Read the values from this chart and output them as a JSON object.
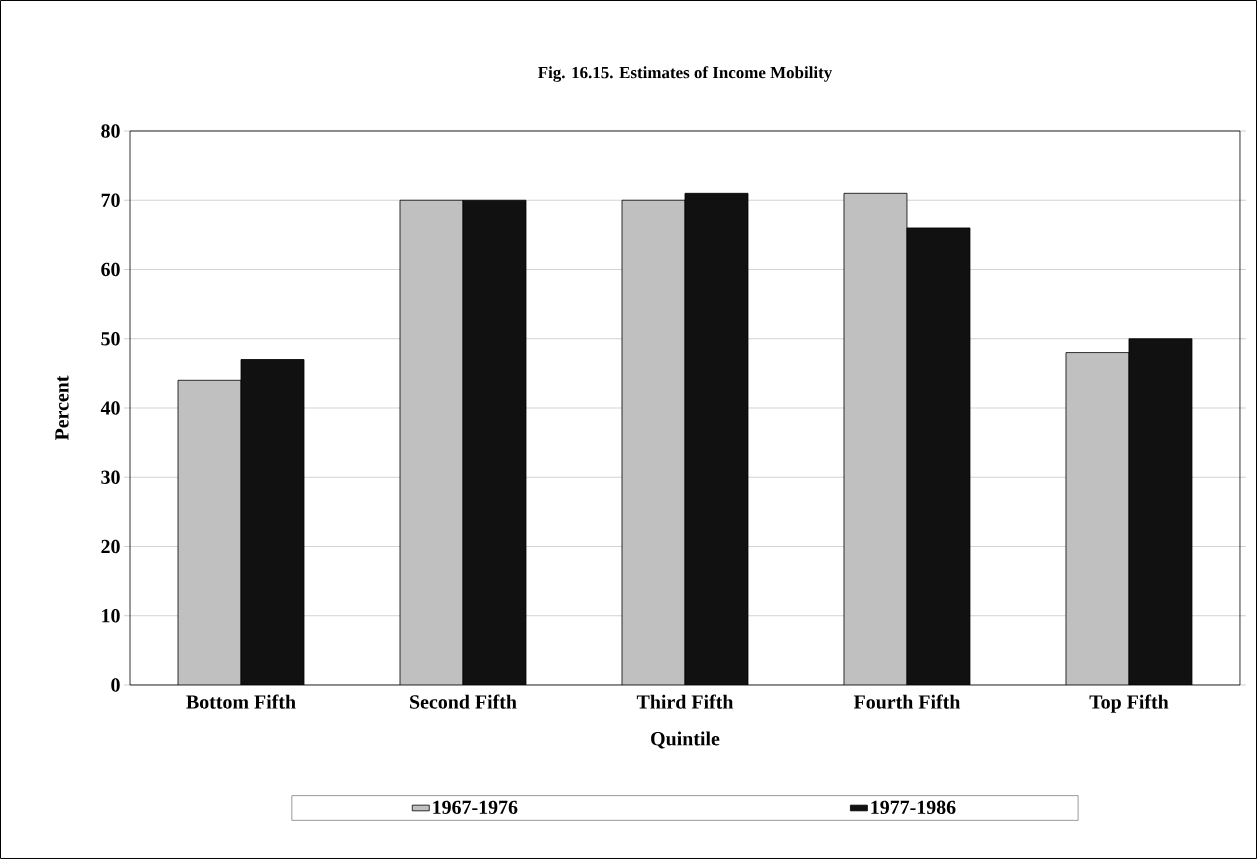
{
  "chart_data": {
    "type": "bar",
    "title": "Fig. 16.15. Estimates of Income Mobility",
    "xlabel": "Quintile",
    "ylabel": "Percent",
    "categories": [
      "Bottom Fifth",
      "Second Fifth",
      "Third Fifth",
      "Fourth Fifth",
      "Top Fifth"
    ],
    "series": [
      {
        "name": "1967-1976",
        "color": "#c0c0c0",
        "values": [
          44,
          70,
          70,
          71,
          48
        ]
      },
      {
        "name": "1977-1986",
        "color": "#111111",
        "values": [
          47,
          70,
          71,
          66,
          50
        ]
      }
    ],
    "ylim": [
      0,
      80
    ],
    "yticks": [
      0,
      10,
      20,
      30,
      40,
      50,
      60,
      70,
      80
    ],
    "grid": "y",
    "legend": "bottom"
  }
}
